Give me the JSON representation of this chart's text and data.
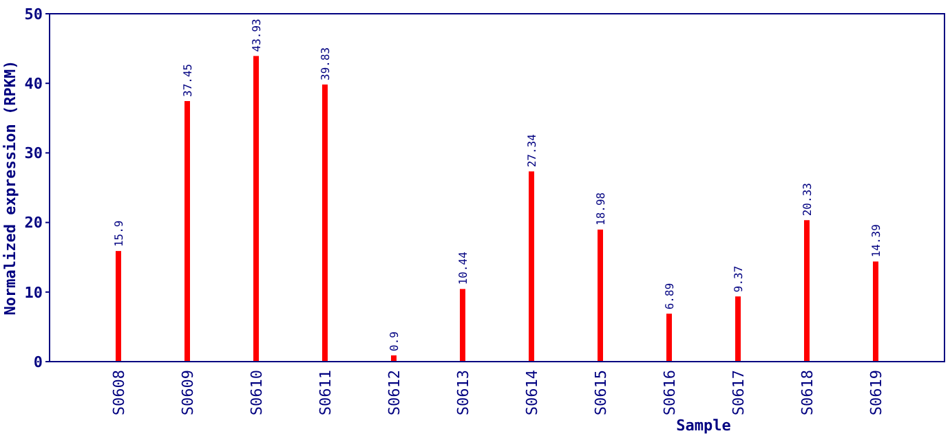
{
  "chart_data": {
    "type": "bar",
    "xlabel": "Sample",
    "ylabel": "Normalized expression (RPKM)",
    "categories": [
      "S0608",
      "S0609",
      "S0610",
      "S0611",
      "S0612",
      "S0613",
      "S0614",
      "S0615",
      "S0616",
      "S0617",
      "S0618",
      "S0619"
    ],
    "values": [
      15.9,
      37.45,
      43.93,
      39.83,
      0.9,
      10.44,
      27.34,
      18.98,
      6.89,
      9.37,
      20.33,
      14.39
    ],
    "color": "#ff0000",
    "data_labels": true,
    "ylim": [
      0,
      50
    ],
    "yticks": [
      0,
      10,
      20,
      30,
      40,
      50
    ],
    "grid": false
  }
}
